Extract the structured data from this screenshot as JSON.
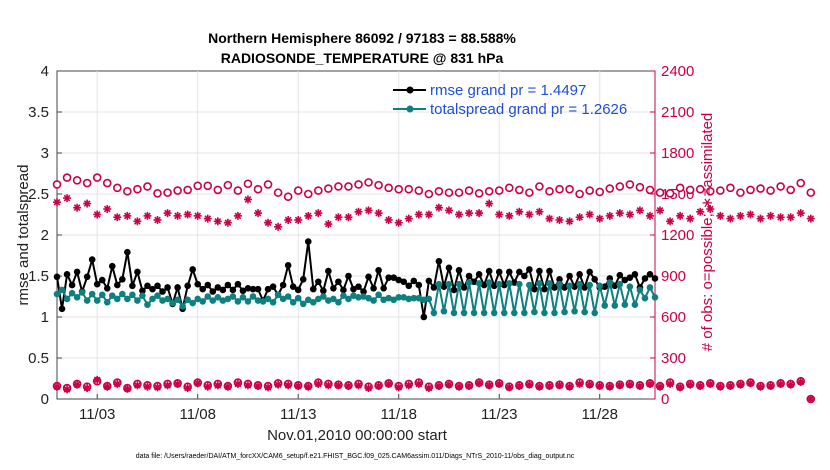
{
  "chart_data": {
    "type": "line",
    "title_line1": "Northern Hemisphere 86092 / 97183 = 88.588%",
    "title_line2": "RADIOSONDE_TEMPERATURE @ 831 hPa",
    "ylabel_left": "rmse and totalspread",
    "ylabel_right": "# of obs: o=possible; ∗=assimilated",
    "xlabel": "Nov.01,2010 00:00:00 start",
    "footnote": "data file: /Users/raeder/DAI/ATM_forcXX/CAM6_setup/f.e21.FHIST_BGC.f09_025.CAM6assim.011/Diags_NTrS_2010-11/obs_diag_output.nc",
    "ylim_left": [
      0,
      4
    ],
    "ylim_right": [
      0,
      2400
    ],
    "xlim": [
      1.0,
      30.75
    ],
    "yticks_left": [
      "0",
      "0.5",
      "1",
      "1.5",
      "2",
      "2.5",
      "3",
      "3.5",
      "4"
    ],
    "yticks_right": [
      "0",
      "300",
      "600",
      "900",
      "1200",
      "1500",
      "1800",
      "2100",
      "2400"
    ],
    "xticks": [
      {
        "day": 3,
        "label": "11/03"
      },
      {
        "day": 8,
        "label": "11/08"
      },
      {
        "day": 13,
        "label": "11/13"
      },
      {
        "day": 18,
        "label": "11/18"
      },
      {
        "day": 23,
        "label": "11/23"
      },
      {
        "day": 28,
        "label": "11/28"
      }
    ],
    "series": [
      {
        "name": "rmse grand pr = 1.4497",
        "color": "#000000",
        "marker": "filled-circle",
        "values": [
          1.49,
          1.1,
          1.52,
          1.39,
          1.55,
          1.31,
          1.49,
          1.7,
          1.4,
          1.45,
          1.35,
          1.62,
          1.39,
          1.46,
          1.79,
          1.38,
          1.55,
          1.32,
          1.38,
          1.34,
          1.38,
          1.31,
          1.36,
          1.16,
          1.36,
          1.1,
          1.38,
          1.58,
          1.4,
          1.34,
          1.39,
          1.31,
          1.36,
          1.33,
          1.39,
          1.33,
          1.4,
          1.32,
          1.35,
          1.34,
          1.34,
          1.2,
          1.34,
          1.37,
          1.27,
          1.39,
          1.63,
          1.37,
          1.33,
          1.46,
          1.92,
          1.34,
          1.43,
          1.32,
          1.56,
          1.35,
          1.43,
          1.33,
          1.5,
          1.34,
          1.37,
          1.31,
          1.49,
          1.35,
          1.57,
          1.35,
          1.48,
          1.48,
          1.45,
          1.43,
          1.38,
          1.44,
          1.39,
          1.0,
          1.44,
          1.36,
          1.68,
          1.37,
          1.6,
          1.33,
          1.57,
          1.36,
          1.5,
          1.43,
          1.52,
          1.39,
          1.56,
          1.38,
          1.55,
          1.39,
          1.55,
          1.42,
          1.55,
          1.5,
          1.58,
          1.34,
          1.56,
          1.34,
          1.56,
          1.36,
          1.46,
          1.36,
          1.5,
          1.37,
          1.52,
          1.36,
          1.55,
          1.46,
          1.36,
          1.37,
          1.47,
          1.38,
          1.51,
          1.45,
          1.48,
          1.52,
          1.36,
          1.47,
          1.52,
          1.47
        ],
        "stride_days": 0.25
      },
      {
        "name": "totalspread grand pr = 1.2626",
        "color": "#0e8080",
        "marker": "filled-circle",
        "values": [
          1.28,
          1.33,
          1.22,
          1.29,
          1.24,
          1.3,
          1.2,
          1.28,
          1.2,
          1.27,
          1.18,
          1.26,
          1.22,
          1.28,
          1.22,
          1.27,
          1.2,
          1.26,
          1.15,
          1.22,
          1.26,
          1.2,
          1.22,
          1.17,
          1.21,
          1.13,
          1.21,
          1.17,
          1.22,
          1.19,
          1.25,
          1.2,
          1.24,
          1.2,
          1.22,
          1.25,
          1.19,
          1.24,
          1.19,
          1.25,
          1.2,
          1.19,
          1.22,
          1.18,
          1.27,
          1.22,
          1.25,
          1.18,
          1.23,
          1.16,
          1.21,
          1.18,
          1.22,
          1.25,
          1.2,
          1.22,
          1.18,
          1.26,
          1.22,
          1.26,
          1.24,
          1.25,
          1.23,
          1.2,
          1.27,
          1.21,
          1.23,
          1.21,
          1.24,
          1.24,
          1.22,
          1.23,
          1.23,
          1.21,
          1.22,
          1.05,
          1.4,
          1.07,
          1.4,
          1.05,
          1.4,
          1.05,
          1.42,
          1.05,
          1.41,
          1.05,
          1.42,
          1.05,
          1.4,
          1.05,
          1.41,
          1.05,
          1.4,
          1.05,
          1.39,
          1.06,
          1.41,
          1.05,
          1.41,
          1.05,
          1.4,
          1.06,
          1.38,
          1.07,
          1.4,
          1.06,
          1.39,
          1.05,
          1.38,
          1.14,
          1.42,
          1.14,
          1.4,
          1.15,
          1.37,
          1.15,
          1.33,
          1.23,
          1.36,
          1.24
        ],
        "stride_days": 0.25
      },
      {
        "name": "obs possible (o)",
        "color": "#cc0044",
        "marker": "open-circle",
        "axis": "right",
        "values": [
          1570,
          1620,
          1600,
          1580,
          1620,
          1580,
          1545,
          1520,
          1535,
          1555,
          1505,
          1510,
          1525,
          1530,
          1560,
          1560,
          1530,
          1565,
          1525,
          1575,
          1535,
          1570,
          1510,
          1480,
          1525,
          1500,
          1525,
          1540,
          1555,
          1555,
          1570,
          1585,
          1565,
          1545,
          1535,
          1535,
          1525,
          1500,
          1520,
          1510,
          1510,
          1525,
          1505,
          1520,
          1525,
          1545,
          1530,
          1510,
          1555,
          1520,
          1535,
          1535,
          1500,
          1525,
          1515,
          1540,
          1555,
          1570,
          1550,
          1530,
          1510,
          1505,
          1545,
          1530,
          1535,
          1520,
          1525,
          1545,
          1510,
          1530,
          1540,
          1525,
          1555,
          1530,
          1580,
          1510
        ],
        "stride_days": 0.5
      },
      {
        "name": "obs assimilated (*)",
        "color": "#cc0044",
        "marker": "asterisk",
        "axis": "right",
        "values": [
          1440,
          1470,
          1400,
          1430,
          1350,
          1390,
          1330,
          1340,
          1300,
          1340,
          1310,
          1360,
          1340,
          1350,
          1340,
          1320,
          1300,
          1290,
          1340,
          1460,
          1360,
          1290,
          1260,
          1310,
          1310,
          1340,
          1360,
          1280,
          1330,
          1330,
          1370,
          1380,
          1360,
          1310,
          1290,
          1320,
          1350,
          1350,
          1400,
          1380,
          1350,
          1360,
          1360,
          1430,
          1350,
          1340,
          1370,
          1350,
          1370,
          1320,
          1310,
          1300,
          1330,
          1350,
          1320,
          1340,
          1360,
          1350,
          1380,
          1340,
          1380,
          1300,
          1340,
          1320,
          1370,
          1390,
          1340,
          1320,
          1340,
          1350,
          1320,
          1340,
          1330,
          1330,
          1360,
          1320
        ],
        "stride_days": 0.5
      },
      {
        "name": "obs low possible (o)",
        "color": "#cc0044",
        "marker": "open-circle",
        "axis": "right",
        "values": [
          95,
          80,
          110,
          90,
          130,
          95,
          120,
          80,
          110,
          100,
          95,
          110,
          115,
          90,
          120,
          100,
          110,
          95,
          120,
          110,
          100,
          95,
          115,
          110,
          100,
          95,
          120,
          110,
          105,
          100,
          110,
          90,
          100,
          115,
          95,
          110,
          120,
          90,
          100,
          110,
          95,
          100,
          120,
          105,
          115,
          90,
          100,
          110,
          95,
          100,
          105,
          95,
          120,
          110,
          100,
          95,
          105,
          110,
          100,
          115,
          95,
          120,
          90,
          110,
          100,
          115,
          95,
          100,
          110,
          120,
          95,
          100,
          115,
          110,
          130,
          0
        ],
        "stride_days": 0.5
      },
      {
        "name": "obs low assimilated (*)",
        "color": "#cc0044",
        "marker": "asterisk",
        "axis": "right",
        "values": [
          90,
          70,
          105,
          80,
          140,
          90,
          110,
          75,
          100,
          90,
          85,
          100,
          110,
          80,
          115,
          90,
          100,
          90,
          110,
          100,
          95,
          85,
          105,
          100,
          95,
          90,
          110,
          100,
          100,
          95,
          100,
          80,
          95,
          110,
          85,
          100,
          110,
          80,
          95,
          105,
          90,
          95,
          115,
          100,
          110,
          85,
          95,
          105,
          90,
          95,
          100,
          90,
          110,
          105,
          95,
          90,
          100,
          105,
          95,
          110,
          90,
          110,
          85,
          105,
          95,
          110,
          90,
          95,
          105,
          115,
          90,
          95,
          110,
          105,
          125,
          0
        ],
        "stride_days": 0.5
      }
    ]
  }
}
